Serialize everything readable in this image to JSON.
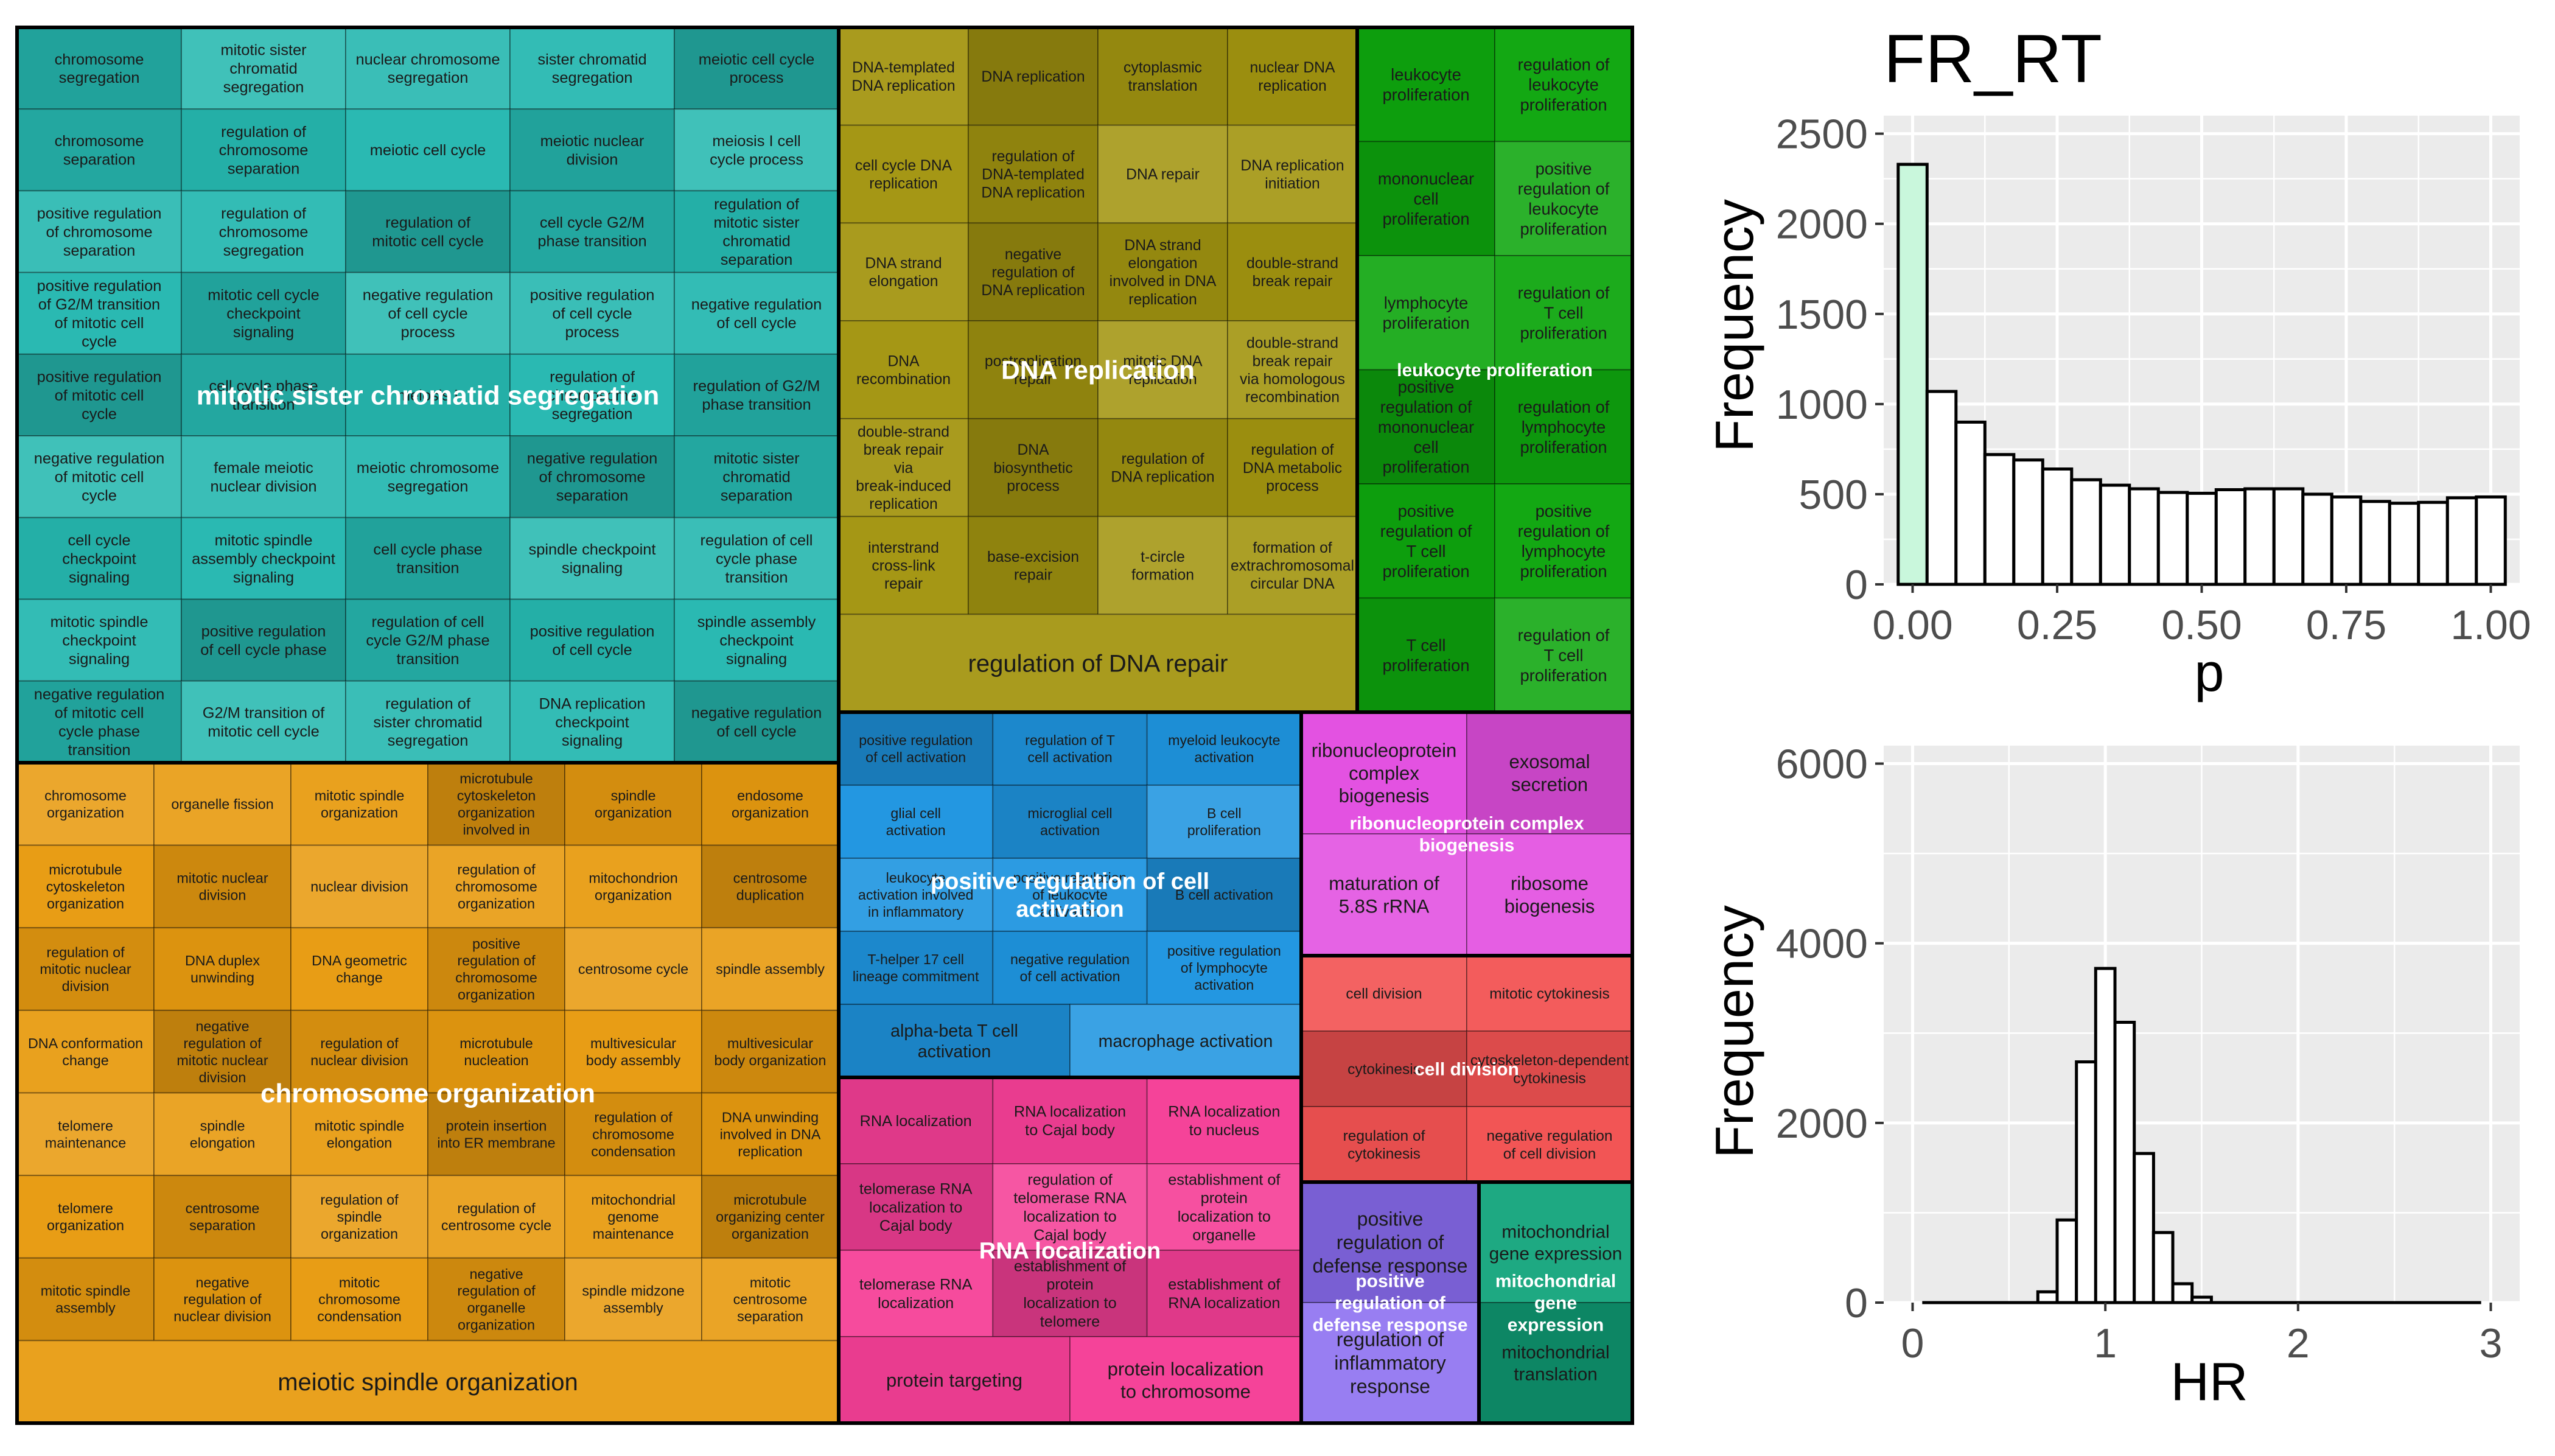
{
  "chart_data": [
    {
      "type": "treemap",
      "groups": [
        {
          "name": "mitotic sister chromatid segregation",
          "color": "#26b8b0",
          "tiles": [
            "chromosome segregation",
            "mitotic sister chromatid segregation",
            "nuclear chromosome segregation",
            "sister chromatid segregation",
            "meiotic cell cycle process",
            "chromosome separation",
            "regulation of chromosome separation",
            "meiotic cell cycle",
            "meiotic nuclear division",
            "meiosis I cell cycle process",
            "positive regulation of chromosome separation",
            "regulation of chromosome segregation",
            "regulation of mitotic cell cycle",
            "cell cycle G2/M phase transition",
            "regulation of mitotic sister chromatid separation",
            "positive regulation of G2/M transition of mitotic cell cycle",
            "mitotic cell cycle checkpoint signaling",
            "negative regulation of cell cycle process",
            "positive regulation of cell cycle process",
            "negative regulation of cell cycle",
            "positive regulation of mitotic cell cycle",
            "cell cycle phase transition",
            "meiosis I",
            "regulation of chromosome segregation",
            "regulation of G2/M phase transition",
            "negative regulation of mitotic cell cycle",
            "female meiotic nuclear division",
            "meiotic chromosome segregation",
            "negative regulation of chromosome separation",
            "mitotic sister chromatid separation",
            "cell cycle checkpoint signaling",
            "mitotic spindle assembly checkpoint signaling",
            "cell cycle phase transition",
            "spindle checkpoint signaling",
            "regulation of cell cycle phase transition",
            "mitotic spindle checkpoint signaling",
            "positive regulation of cell cycle phase",
            "regulation of cell cycle G2/M phase transition",
            "positive regulation of cell cycle",
            "spindle assembly checkpoint signaling",
            "negative regulation of mitotic cell cycle phase transition",
            "G2/M transition of mitotic cell cycle",
            "regulation of sister chromatid segregation",
            "DNA replication checkpoint signaling",
            "negative regulation of cell cycle"
          ]
        },
        {
          "name": "DNA replication",
          "color": "#a39510",
          "tiles": [
            "DNA-templated DNA replication",
            "DNA replication",
            "cytoplasmic translation",
            "nuclear DNA replication",
            "cell cycle DNA replication",
            "regulation of DNA-templated DNA replication",
            "DNA repair",
            "DNA replication initiation",
            "DNA strand elongation",
            "negative regulation of DNA replication",
            "DNA strand elongation involved in DNA replication",
            "double-strand break repair",
            "DNA recombination",
            "postreplication repair",
            "mitotic DNA replication",
            "double-strand break repair via homologous recombination",
            "double-strand break repair via break-induced replication",
            "DNA biosynthetic process",
            "regulation of DNA replication",
            "regulation of DNA metabolic process",
            "interstrand cross-link repair",
            "base-excision repair",
            "t-circle formation",
            "formation of extrachromosomal circular DNA",
            "regulation of DNA repair"
          ]
        },
        {
          "name": "leukocyte proliferation",
          "color": "#0ea60e",
          "tiles": [
            "leukocyte proliferation",
            "regulation of leukocyte proliferation",
            "mononuclear cell proliferation",
            "positive regulation of leukocyte proliferation",
            "lymphocyte proliferation",
            "regulation of T cell proliferation",
            "positive regulation of mononuclear cell proliferation",
            "regulation of lymphocyte proliferation",
            "positive regulation of T cell proliferation",
            "positive regulation of lymphocyte proliferation",
            "T cell proliferation",
            "regulation of T cell proliferation"
          ]
        },
        {
          "name": "chromosome organization",
          "color": "#e89b10",
          "tiles": [
            "chromosome organization",
            "organelle fission",
            "mitotic spindle organization",
            "microtubule cytoskeleton organization involved in mitosis",
            "spindle organization",
            "endosome organization",
            "microtubule cytoskeleton organization",
            "mitotic nuclear division",
            "nuclear division",
            "regulation of chromosome organization",
            "mitochondrion organization",
            "centrosome duplication",
            "regulation of mitotic nuclear division",
            "DNA duplex unwinding",
            "DNA geometric change",
            "positive regulation of chromosome organization",
            "centrosome cycle",
            "spindle assembly",
            "DNA conformation change",
            "negative regulation of mitotic nuclear division",
            "regulation of nuclear division",
            "microtubule nucleation",
            "multivesicular body assembly",
            "multivesicular body organization",
            "telomere maintenance",
            "spindle elongation",
            "mitotic spindle elongation",
            "protein insertion into ER membrane",
            "regulation of chromosome condensation",
            "DNA unwinding involved in DNA replication",
            "telomere organization",
            "centrosome separation",
            "regulation of spindle organization",
            "regulation of centrosome cycle",
            "mitochondrial genome maintenance",
            "microtubule organizing center organization",
            "mitotic spindle assembly",
            "negative regulation of nuclear division",
            "mitotic chromosome condensation",
            "negative regulation of organelle organization",
            "spindle midzone assembly",
            "mitotic centrosome separation",
            "meiotic spindle organization"
          ]
        },
        {
          "name": "positive regulation of cell activation",
          "color": "#1f95e0",
          "tiles": [
            "positive regulation of cell activation",
            "regulation of T cell activation",
            "myeloid leukocyte activation",
            "glial cell activation",
            "microglial cell activation",
            "B cell proliferation",
            "leukocyte activation involved in inflammatory response",
            "positive regulation of leukocyte activation",
            "B cell activation",
            "T-helper 17 cell lineage commitment",
            "negative regulation of cell activation",
            "positive regulation of lymphocyte activation",
            "alpha-beta T cell activation",
            "macrophage activation"
          ]
        },
        {
          "name": "ribonucleoprotein complex biogenesis",
          "color": "#e24ee0",
          "tiles": [
            "ribonucleoprotein complex biogenesis",
            "exosomal secretion",
            "maturation of 5.8S rRNA",
            "ribosome biogenesis"
          ]
        },
        {
          "name": "cell division",
          "color": "#f25252",
          "tiles": [
            "cell division",
            "mitotic cytokinesis",
            "cytokinesis",
            "cytoskeleton-dependent cytokinesis",
            "regulation of cytokinesis",
            "negative regulation of cell division"
          ]
        },
        {
          "name": "RNA localization",
          "color": "#f53f97",
          "tiles": [
            "RNA localization",
            "RNA localization to Cajal body",
            "RNA localization to nucleus",
            "telomerase RNA localization to Cajal body",
            "regulation of telomerase RNA localization to Cajal body",
            "establishment of protein localization to organelle",
            "telomerase RNA localization",
            "establishment of protein localization to telomere",
            "establishment of RNA localization",
            "protein targeting",
            "protein localization to chromosome"
          ]
        },
        {
          "name": "positive regulation of defense response",
          "color": "#8a6cf0",
          "tiles": [
            "positive regulation of defense response",
            "regulation of inflammatory response"
          ]
        },
        {
          "name": "mitochondrial gene expression",
          "color": "#10a37a",
          "tiles": [
            "mitochondrial gene expression",
            "mitochondrial translation"
          ]
        }
      ]
    },
    {
      "type": "bar",
      "title": "FR_RT",
      "xlabel": "p",
      "ylabel": "Frequency",
      "x_ticks": [
        "0.00",
        "0.25",
        "0.50",
        "0.75",
        "1.00"
      ],
      "y_ticks": [
        "0",
        "500",
        "1000",
        "1500",
        "2000",
        "2500"
      ],
      "xlim": [
        -0.05,
        1.05
      ],
      "ylim": [
        0,
        2600
      ],
      "bin_width": 0.05,
      "bin_centers": [
        0.0,
        0.05,
        0.1,
        0.15,
        0.2,
        0.25,
        0.3,
        0.35,
        0.4,
        0.45,
        0.5,
        0.55,
        0.6,
        0.65,
        0.7,
        0.75,
        0.8,
        0.85,
        0.9,
        0.95,
        1.0
      ],
      "values": [
        2330,
        1070,
        900,
        720,
        690,
        640,
        580,
        550,
        530,
        510,
        505,
        525,
        530,
        530,
        500,
        485,
        460,
        450,
        455,
        480,
        485
      ],
      "highlight_color": "#c9f7dc"
    },
    {
      "type": "bar",
      "title": "",
      "xlabel": "HR",
      "ylabel": "Frequency",
      "x_ticks": [
        "0",
        "1",
        "2",
        "3"
      ],
      "y_ticks": [
        "0",
        "2000",
        "4000",
        "6000"
      ],
      "xlim": [
        -0.15,
        3.15
      ],
      "ylim": [
        0,
        6200
      ],
      "bin_width": 0.1,
      "bin_centers": [
        0.1,
        0.2,
        0.3,
        0.4,
        0.5,
        0.6,
        0.7,
        0.8,
        0.9,
        1.0,
        1.1,
        1.2,
        1.3,
        1.4,
        1.5,
        1.6,
        1.7,
        1.8,
        1.9,
        2.0,
        2.1,
        2.2,
        2.3,
        2.4,
        2.5,
        2.6,
        2.7,
        2.8,
        2.9
      ],
      "values": [
        0,
        0,
        0,
        0,
        0,
        0,
        120,
        920,
        2680,
        3720,
        3120,
        1660,
        780,
        210,
        60,
        0,
        0,
        0,
        0,
        0,
        0,
        0,
        0,
        0,
        0,
        0,
        0,
        0,
        0
      ]
    }
  ]
}
